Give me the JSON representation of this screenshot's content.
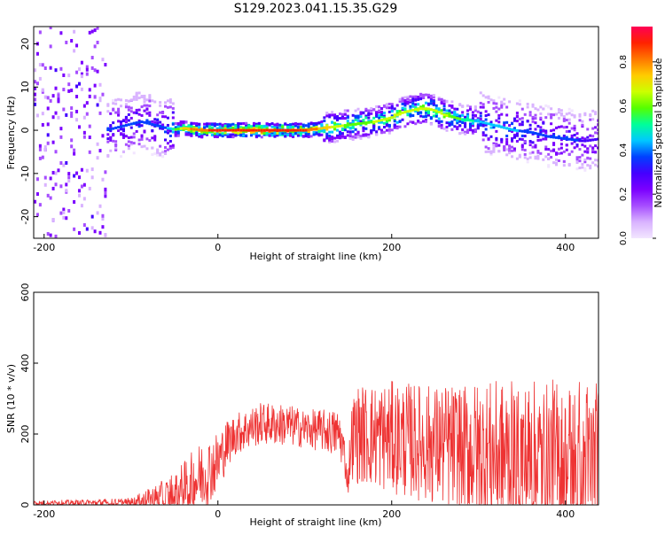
{
  "figure": {
    "title": "S129.2023.041.15.35.G29"
  },
  "chart_data": [
    {
      "type": "heatmap",
      "xlabel": "Height of straight line (km)",
      "ylabel": "Frequency (Hz)",
      "xlim": [
        -212,
        438
      ],
      "ylim": [
        -25,
        24
      ],
      "x_ticks": [
        -200,
        0,
        200,
        400
      ],
      "y_ticks": [
        -20,
        -10,
        0,
        10,
        20
      ],
      "colorbar": {
        "label": "Normalized spectral amplitude",
        "range": [
          0,
          0.96
        ],
        "ticks": [
          0.0,
          0.2,
          0.4,
          0.6,
          0.8
        ],
        "colors": [
          "#f2e6ff",
          "#d9b3ff",
          "#a64dff",
          "#7b00ff",
          "#4400ff",
          "#0040ff",
          "#00c8ff",
          "#00ff99",
          "#55ff00",
          "#ccff00",
          "#ffcc00",
          "#ff7700",
          "#ff2200",
          "#ff0055"
        ]
      },
      "ridge": {
        "x": [
          -130,
          -110,
          -90,
          -70,
          -60,
          -50,
          -40,
          -20,
          0,
          20,
          50,
          80,
          100,
          120,
          140,
          160,
          180,
          200,
          210,
          220,
          230,
          240,
          250,
          260,
          280,
          300,
          320,
          340,
          360,
          380,
          400,
          420,
          438
        ],
        "y": [
          0,
          1,
          2,
          1,
          0.5,
          0.2,
          0.5,
          0,
          0,
          0,
          0,
          0,
          0,
          0.5,
          1,
          1.5,
          2,
          3,
          4,
          4.5,
          5,
          5,
          4.5,
          3.5,
          2.5,
          2,
          1,
          0,
          -0.5,
          -1.5,
          -2,
          -2.5,
          -2
        ]
      },
      "ridge_amplitude": {
        "x": [
          -130,
          -60,
          -40,
          0,
          50,
          100,
          150,
          200,
          250,
          300,
          350,
          400,
          438
        ],
        "y": [
          0.35,
          0.4,
          0.75,
          0.9,
          0.92,
          0.85,
          0.6,
          0.65,
          0.7,
          0.45,
          0.4,
          0.35,
          0.3
        ]
      }
    },
    {
      "type": "line",
      "xlabel": "Height of straight line (km)",
      "ylabel": "SNR (10 * v/v)",
      "xlim": [
        -212,
        438
      ],
      "ylim": [
        0,
        600
      ],
      "x_ticks": [
        -200,
        0,
        200,
        400
      ],
      "y_ticks": [
        0,
        200,
        400,
        600
      ],
      "color": "#ee3333",
      "envelope": {
        "x": [
          -212,
          -150,
          -100,
          -80,
          -60,
          -40,
          -20,
          0,
          10,
          20,
          30,
          50,
          80,
          100,
          120,
          140,
          145,
          148,
          150,
          152,
          155,
          160,
          200,
          250,
          300,
          350,
          400,
          420,
          438
        ],
        "base": [
          5,
          5,
          5,
          15,
          20,
          40,
          80,
          120,
          170,
          200,
          210,
          230,
          225,
          215,
          210,
          200,
          150,
          90,
          60,
          150,
          190,
          200,
          190,
          170,
          150,
          130,
          100,
          90,
          100
        ],
        "spread": [
          8,
          10,
          15,
          30,
          55,
          80,
          100,
          90,
          70,
          60,
          60,
          60,
          60,
          55,
          60,
          70,
          60,
          40,
          30,
          80,
          120,
          140,
          160,
          170,
          200,
          220,
          260,
          280,
          250
        ]
      }
    }
  ]
}
